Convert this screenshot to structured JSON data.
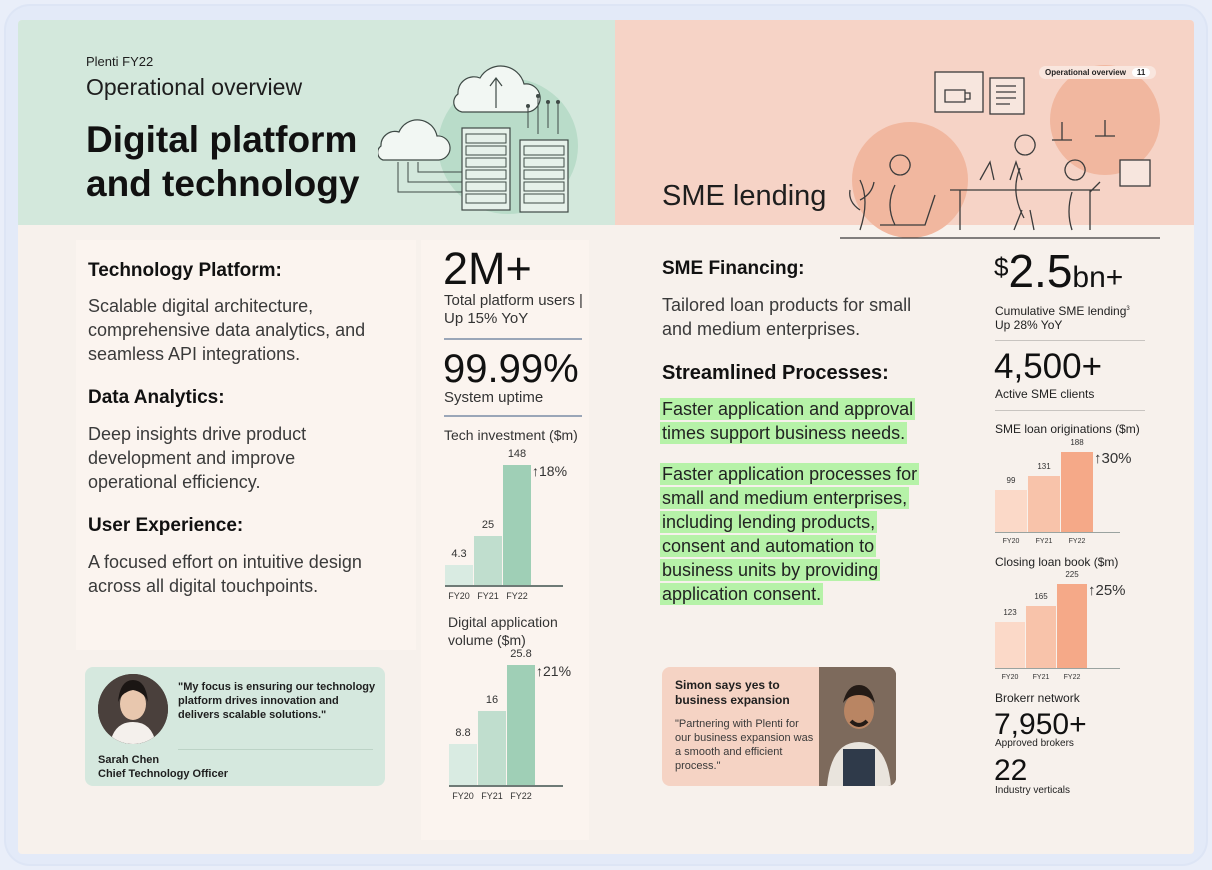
{
  "colors": {
    "green_header": "#d3e8dc",
    "peach_header": "#f6d3c6",
    "green_bar_light": "#d9ebe2",
    "green_bar_mid": "#c0dece",
    "green_bar_dark": "#9fcfb6",
    "peach_bar_light": "#fbd9c8",
    "peach_bar_mid": "#f8c3aa",
    "peach_bar_dark": "#f5a988",
    "highlight": "#b6f2a8"
  },
  "header": {
    "subtitle": "Plenti FY22",
    "section": "Operational overview",
    "title": "Digital platform and technology",
    "sme_title": "SME lending",
    "pill_label": "Operational overview",
    "pill_page": "11"
  },
  "tech": {
    "h1": "Technology Platform:",
    "p1": "Scalable digital architecture, comprehensive data analytics, and seamless API integrations.",
    "h2": "Data Analytics:",
    "p2": "Deep insights drive product development and improve operational efficiency.",
    "h3": "User Experience:",
    "p3": "A focused effort on intuitive design across all digital touchpoints."
  },
  "stats": {
    "users_value": "2M+",
    "users_label": "Total platform users | Up 15% YoY",
    "uptime_value": "99.99%",
    "uptime_label": "System uptime"
  },
  "chart_data": [
    {
      "type": "bar",
      "title": "Tech investment ($m)",
      "categories": [
        "FY20",
        "FY21",
        "FY22"
      ],
      "values": [
        4.3,
        25,
        148
      ],
      "value_labels": [
        "4.3",
        "25",
        "148"
      ],
      "growth": "18%"
    },
    {
      "type": "bar",
      "title": "Digital application volume ($m)",
      "categories": [
        "FY20",
        "FY21",
        "FY22"
      ],
      "values": [
        8.8,
        16,
        25.8
      ],
      "value_labels": [
        "8.8",
        "16",
        "25.8"
      ],
      "growth": "21%"
    },
    {
      "type": "bar",
      "title": "SME loan originations ($m)",
      "categories": [
        "FY20",
        "FY21",
        "FY22"
      ],
      "values": [
        99,
        131,
        188
      ],
      "value_labels": [
        "99",
        "131",
        "188"
      ],
      "growth": "30%"
    },
    {
      "type": "bar",
      "title": "Closing loan book ($m)",
      "categories": [
        "FY20",
        "FY21",
        "FY22"
      ],
      "values": [
        123,
        165,
        225
      ],
      "value_labels": [
        "123",
        "165",
        "225"
      ],
      "growth": "25%"
    }
  ],
  "quote": {
    "text": "\"My focus is ensuring our technology platform drives innovation and delivers scalable solutions.\"",
    "name": "Sarah Chen",
    "role": "Chief Technology Officer"
  },
  "sme": {
    "h1": "SME Financing:",
    "p1": "Tailored loan products for small and medium enterprises.",
    "h2": "Streamlined Processes:",
    "p2": "Faster application and approval times support business needs.",
    "p3": "Faster application processes for small and medium enterprises, including lending products, consent and automation to business units by providing application consent."
  },
  "simon": {
    "heading": "Simon says yes to business expansion",
    "quote": "\"Partnering with Plenti for our business expansion was a smooth and efficient process.\""
  },
  "right": {
    "lending_prefix": "$",
    "lending_value": "2.5",
    "lending_suffix": "bn+",
    "lending_label": "Cumulative SME lending",
    "lending_note": "3",
    "lending_growth": "Up 28% YoY",
    "clients_value": "4,500+",
    "clients_label": "Active SME clients",
    "broker_title": "Brokerr network",
    "brokers_value": "7,950+",
    "brokers_label": "Approved brokers",
    "verticals_value": "22",
    "verticals_label": "Industry verticals"
  }
}
